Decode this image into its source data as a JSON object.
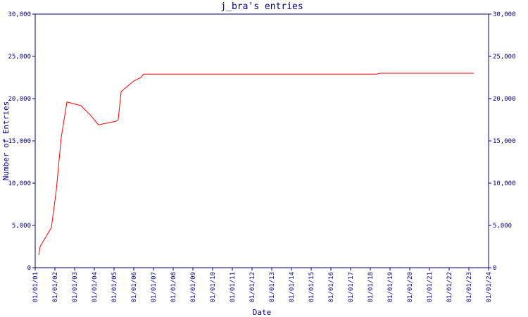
{
  "chart_data": {
    "type": "line",
    "title": "j_bra's entries",
    "x_label": "Date",
    "y_label": "Number of Entries",
    "xlim": [
      1,
      24
    ],
    "xticks": [
      {
        "value": 1,
        "label": "01/01/01"
      },
      {
        "value": 2,
        "label": "01/01/02"
      },
      {
        "value": 3,
        "label": "01/01/03"
      },
      {
        "value": 4,
        "label": "01/01/04"
      },
      {
        "value": 5,
        "label": "01/01/05"
      },
      {
        "value": 6,
        "label": "01/01/06"
      },
      {
        "value": 7,
        "label": "01/01/07"
      },
      {
        "value": 8,
        "label": "01/01/08"
      },
      {
        "value": 9,
        "label": "01/01/09"
      },
      {
        "value": 10,
        "label": "01/01/10"
      },
      {
        "value": 11,
        "label": "01/01/11"
      },
      {
        "value": 12,
        "label": "01/01/12"
      },
      {
        "value": 13,
        "label": "01/01/13"
      },
      {
        "value": 14,
        "label": "01/01/14"
      },
      {
        "value": 15,
        "label": "01/01/15"
      },
      {
        "value": 16,
        "label": "01/01/16"
      },
      {
        "value": 17,
        "label": "01/01/17"
      },
      {
        "value": 18,
        "label": "01/01/18"
      },
      {
        "value": 19,
        "label": "01/01/19"
      },
      {
        "value": 20,
        "label": "01/01/20"
      },
      {
        "value": 21,
        "label": "01/01/21"
      },
      {
        "value": 22,
        "label": "01/01/22"
      },
      {
        "value": 23,
        "label": "01/01/23"
      },
      {
        "value": 24,
        "label": "01/01/24"
      }
    ],
    "ylim": [
      0,
      30000
    ],
    "yticks": [
      0,
      {
        "value": 5000,
        "label": "5,000"
      },
      {
        "value": 10000,
        "label": "10,000"
      },
      {
        "value": 15000,
        "label": "15,000"
      },
      {
        "value": 20000,
        "label": "20,000"
      },
      {
        "value": 25000,
        "label": "25,000"
      },
      {
        "value": 30000,
        "label": "30,000"
      }
    ],
    "x": [
      1.18,
      1.25,
      1.82,
      2.07,
      2.32,
      2.61,
      3.32,
      3.79,
      4.21,
      5.11,
      5.21,
      5.36,
      6.0,
      6.36,
      6.5,
      18.32,
      18.5,
      23.25
    ],
    "series": [
      {
        "color": "#ff0000",
        "values": [
          1500,
          2500,
          4750,
          9170,
          15400,
          19600,
          19170,
          18080,
          16900,
          17330,
          17500,
          20830,
          22080,
          22500,
          22900,
          22900,
          23000,
          23000
        ]
      }
    ]
  }
}
